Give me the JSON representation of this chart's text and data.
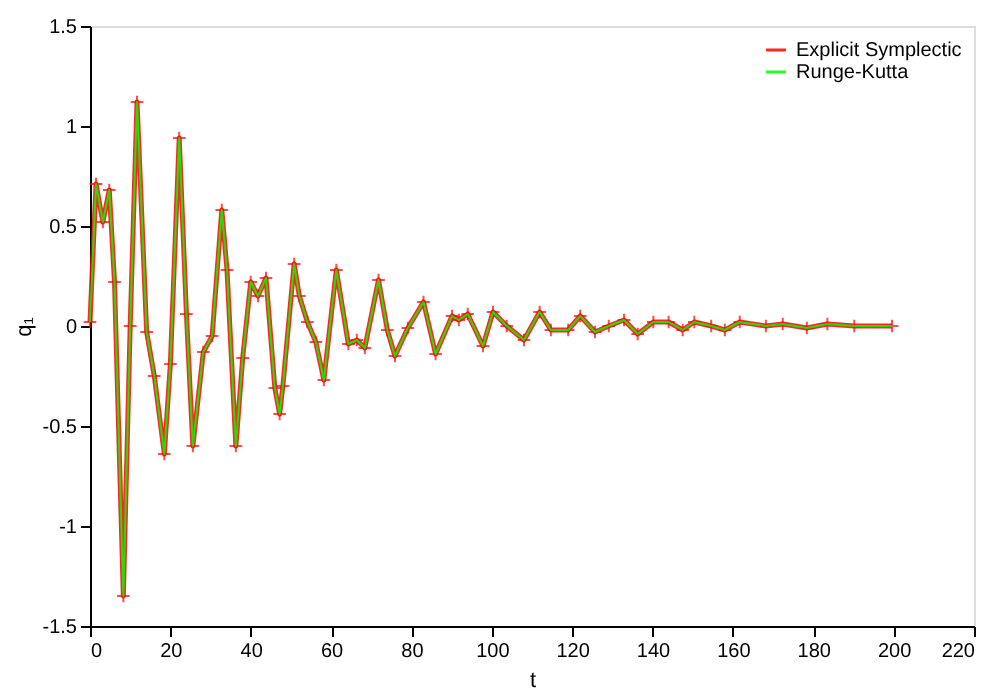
{
  "chart_data": {
    "type": "line",
    "xlabel": "t",
    "ylabel": "q₁",
    "xlim": [
      0,
      220
    ],
    "xticks": [
      0,
      20,
      40,
      60,
      80,
      100,
      120,
      140,
      160,
      180,
      200,
      220
    ],
    "ylim": [
      -1.5,
      1.5
    ],
    "yticks": [
      -1.5,
      -1,
      -0.5,
      0,
      0.5,
      1,
      1.5
    ],
    "legend": "top right",
    "grid": false,
    "line_style": "solid",
    "series": [
      {
        "name": "Explicit Symplectic",
        "color": "#ff0000",
        "marker": "cross",
        "x": [
          0,
          1.5,
          3.2,
          4.8,
          6.1,
          8.3,
          10,
          11.7,
          14.1,
          16,
          18.5,
          20,
          22.2,
          24,
          25.6,
          28.2,
          30.4,
          32.8,
          34.1,
          36.3,
          38,
          40,
          41.8,
          43.8,
          46,
          47.2,
          48,
          50.8,
          52.1,
          54.1,
          56.2,
          58.2,
          61.3,
          64.3,
          66.4,
          68.4,
          71.8,
          74,
          75.9,
          79.1,
          83,
          86,
          90.1,
          91.8,
          94,
          97.8,
          100.3,
          103.7,
          108,
          111.9,
          114.7,
          119,
          122,
          125.7,
          129.1,
          132.9,
          136.3,
          140.2,
          144,
          147.5,
          150.4,
          154.6,
          158,
          161.7,
          168.2,
          172.4,
          178.4,
          183.5,
          190.2,
          199.6
        ],
        "values": [
          0.02,
          0.71,
          0.52,
          0.68,
          0.22,
          -1.35,
          0,
          1.12,
          -0.03,
          -0.25,
          -0.64,
          -0.19,
          0.94,
          0.06,
          -0.6,
          -0.13,
          -0.05,
          0.58,
          0.28,
          -0.6,
          -0.16,
          0.22,
          0.15,
          0.24,
          -0.31,
          -0.44,
          -0.3,
          0.31,
          0.15,
          0.02,
          -0.08,
          -0.27,
          0.28,
          -0.09,
          -0.07,
          -0.11,
          0.23,
          -0.02,
          -0.15,
          -0.01,
          0.12,
          -0.14,
          0.05,
          0.03,
          0.06,
          -0.1,
          0.07,
          0,
          -0.07,
          0.07,
          -0.02,
          -0.02,
          0.05,
          -0.03,
          0,
          0.03,
          -0.04,
          0.02,
          0.02,
          -0.02,
          0.02,
          0,
          -0.02,
          0.02,
          0,
          0.01,
          -0.01,
          0.01,
          0,
          0
        ]
      },
      {
        "name": "Runge-Kutta",
        "color": "#00ff00",
        "marker": "none",
        "x": [
          0,
          1.5,
          3.2,
          4.8,
          6.1,
          8.3,
          10,
          11.7,
          14.1,
          16,
          18.5,
          20,
          22.2,
          24,
          25.6,
          28.2,
          30.4,
          32.8,
          34.1,
          36.3,
          38,
          40,
          41.8,
          43.8,
          46,
          47.2,
          48,
          50.8,
          52.1,
          54.1,
          56.2,
          58.2,
          61.3,
          64.3,
          66.4,
          68.4,
          71.8,
          74,
          75.9,
          79.1,
          83,
          86,
          90.1,
          91.8,
          94,
          97.8,
          100.3,
          103.7,
          108,
          111.9,
          114.7,
          119,
          122,
          125.7,
          129.1,
          132.9,
          136.3,
          140.2,
          144,
          147.5,
          150.4,
          154.6,
          158,
          161.7,
          168.2,
          172.4,
          178.4,
          183.5,
          190.2,
          199.6
        ],
        "values": [
          0.02,
          0.71,
          0.52,
          0.68,
          0.22,
          -1.35,
          0,
          1.12,
          -0.03,
          -0.25,
          -0.64,
          -0.19,
          0.94,
          0.06,
          -0.6,
          -0.13,
          -0.05,
          0.58,
          0.28,
          -0.6,
          -0.16,
          0.22,
          0.15,
          0.24,
          -0.31,
          -0.44,
          -0.3,
          0.31,
          0.15,
          0.02,
          -0.08,
          -0.27,
          0.28,
          -0.09,
          -0.07,
          -0.11,
          0.23,
          -0.02,
          -0.15,
          -0.01,
          0.12,
          -0.14,
          0.05,
          0.03,
          0.06,
          -0.1,
          0.07,
          0,
          -0.07,
          0.07,
          -0.02,
          -0.02,
          0.05,
          -0.03,
          0,
          0.03,
          -0.04,
          0.02,
          0.02,
          -0.02,
          0.02,
          0,
          -0.02,
          0.02,
          0,
          0.01,
          -0.01,
          0.01,
          0,
          0
        ]
      }
    ]
  }
}
